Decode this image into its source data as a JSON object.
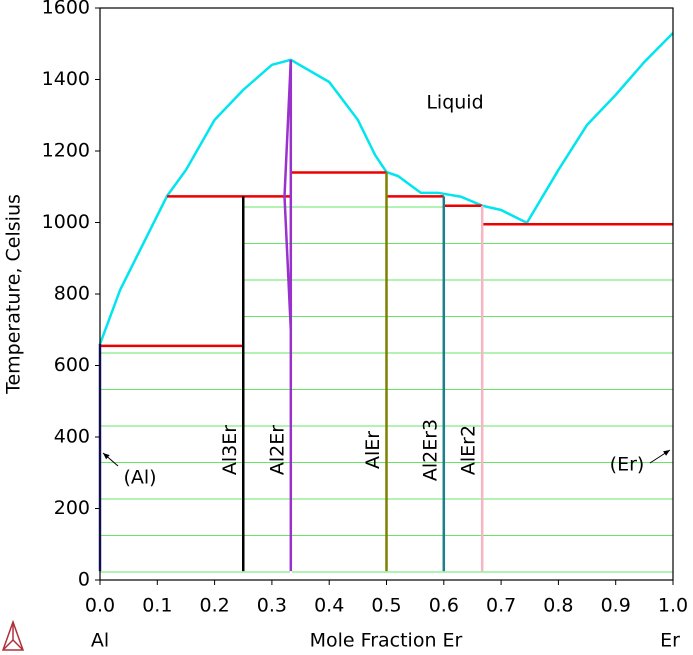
{
  "chart_data": {
    "type": "phase-diagram",
    "x_label": "Mole Fraction Er",
    "y_label": "Temperature, Celsius",
    "x_left_label": "Al",
    "x_right_label": "Er",
    "annotations": [
      "Liquid",
      "(Al)",
      "(Er)"
    ],
    "xlim": [
      0,
      1
    ],
    "xticks": [
      {
        "value": 0,
        "label": "0.0"
      },
      0.1,
      0.2,
      0.3,
      0.4,
      0.5,
      0.6,
      0.7,
      0.8,
      0.9,
      {
        "value": 1,
        "label": "1.0"
      }
    ],
    "ylim": [
      0,
      1600
    ],
    "yticks": [
      0,
      200,
      400,
      600,
      800,
      1000,
      1200,
      1400,
      1600
    ],
    "series": [
      {
        "color": "#00e5ee",
        "x": [
          0,
          0.035,
          0.117,
          0.15,
          0.2,
          0.25,
          0.3,
          0.333,
          0.4,
          0.45,
          0.48,
          0.5,
          0.52,
          0.56,
          0.59,
          0.63,
          0.667,
          0.7,
          0.745,
          0.8,
          0.85,
          0.9,
          0.95,
          1
        ],
        "values": [
          660,
          811,
          1074,
          1147,
          1287,
          1371,
          1441,
          1455,
          1393,
          1287,
          1189,
          1141,
          1130,
          1083,
          1083,
          1072,
          1047,
          1035,
          999,
          1147,
          1273,
          1357,
          1449,
          1530
        ]
      },
      {
        "color": "#ee0000",
        "x": [
          0,
          0.25
        ],
        "values": [
          655,
          655
        ]
      },
      {
        "color": "#ee0000",
        "x": [
          0.117,
          0.333
        ],
        "values": [
          1073,
          1073
        ]
      },
      {
        "color": "#ee0000",
        "x": [
          0.333,
          0.5
        ],
        "values": [
          1140,
          1140
        ]
      },
      {
        "color": "#ee0000",
        "x": [
          0.5,
          0.6
        ],
        "values": [
          1073,
          1073
        ]
      },
      {
        "color": "#ee0000",
        "x": [
          0.6,
          0.667
        ],
        "values": [
          1047,
          1047
        ]
      },
      {
        "color": "#ee0000",
        "x": [
          0.667,
          1
        ],
        "values": [
          995,
          995
        ]
      },
      {
        "color": "#2a2aa8",
        "x": [
          0,
          0
        ],
        "values": [
          25,
          660
        ]
      },
      {
        "name": "Al3Er",
        "color": "#000000",
        "x": [
          0.25,
          0.25
        ],
        "values": [
          25,
          1073
        ]
      },
      {
        "name": "Al2Er",
        "color": "#9932cc",
        "x": [
          0.333,
          0.333,
          0.322,
          0.333
        ],
        "values": [
          25,
          1455,
          1073,
          700
        ]
      },
      {
        "name": "AlEr",
        "color": "#808000",
        "x": [
          0.5,
          0.5
        ],
        "values": [
          25,
          1140
        ]
      },
      {
        "name": "Al2Er3",
        "color": "#1b7f8f",
        "x": [
          0.6,
          0.6
        ],
        "values": [
          25,
          1073
        ]
      },
      {
        "name": "AlEr2",
        "color": "#f4b6c2",
        "x": [
          0.667,
          0.667
        ],
        "values": [
          25,
          1047
        ]
      }
    ]
  }
}
